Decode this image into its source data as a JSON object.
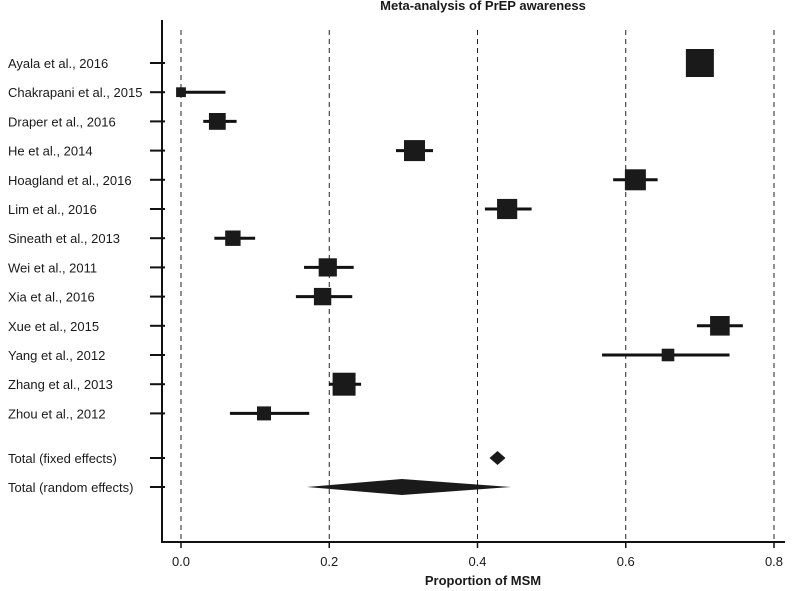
{
  "chart_data": {
    "type": "forest",
    "title": "Meta-analysis of PrEP awareness",
    "xlabel": "Proportion of MSM",
    "xlim": [
      -0.02,
      0.82
    ],
    "xticks": [
      0.0,
      0.2,
      0.4,
      0.6,
      0.8
    ],
    "xtick_labels": [
      "0.0",
      "0.2",
      "0.4",
      "0.6",
      "0.8"
    ],
    "gridlines": [
      0.0,
      0.2,
      0.4,
      0.6,
      0.8
    ],
    "studies": [
      {
        "label": "Ayala et al., 2016",
        "estimate": 0.7,
        "lower": 0.69,
        "upper": 0.71,
        "weight": 1.0
      },
      {
        "label": "Chakrapani et al., 2015",
        "estimate": 0.0,
        "lower": 0.0,
        "upper": 0.06,
        "weight": 0.35
      },
      {
        "label": "Draper et al., 2016",
        "estimate": 0.049,
        "lower": 0.03,
        "upper": 0.075,
        "weight": 0.6
      },
      {
        "label": "He et al., 2014",
        "estimate": 0.315,
        "lower": 0.29,
        "upper": 0.34,
        "weight": 0.75
      },
      {
        "label": "Hoagland et al., 2016",
        "estimate": 0.613,
        "lower": 0.583,
        "upper": 0.643,
        "weight": 0.75
      },
      {
        "label": "Lim et al., 2016",
        "estimate": 0.44,
        "lower": 0.41,
        "upper": 0.473,
        "weight": 0.72
      },
      {
        "label": "Sineath et al., 2013",
        "estimate": 0.07,
        "lower": 0.045,
        "upper": 0.1,
        "weight": 0.55
      },
      {
        "label": "Wei et al., 2011",
        "estimate": 0.198,
        "lower": 0.166,
        "upper": 0.233,
        "weight": 0.65
      },
      {
        "label": "Xia et al., 2016",
        "estimate": 0.191,
        "lower": 0.155,
        "upper": 0.231,
        "weight": 0.62
      },
      {
        "label": "Xue et al., 2015",
        "estimate": 0.727,
        "lower": 0.696,
        "upper": 0.758,
        "weight": 0.7
      },
      {
        "label": "Yang et al., 2012",
        "estimate": 0.657,
        "lower": 0.568,
        "upper": 0.74,
        "weight": 0.45
      },
      {
        "label": "Zhang et al., 2013",
        "estimate": 0.22,
        "lower": 0.2,
        "upper": 0.243,
        "weight": 0.82
      },
      {
        "label": "Zhou et al., 2012",
        "estimate": 0.112,
        "lower": 0.066,
        "upper": 0.173,
        "weight": 0.5
      }
    ],
    "summaries": [
      {
        "label": "Total (fixed effects)",
        "estimate": 0.427,
        "lower": 0.417,
        "upper": 0.437
      },
      {
        "label": "Total (random effects)",
        "estimate": 0.298,
        "lower": 0.17,
        "upper": 0.445
      }
    ]
  }
}
